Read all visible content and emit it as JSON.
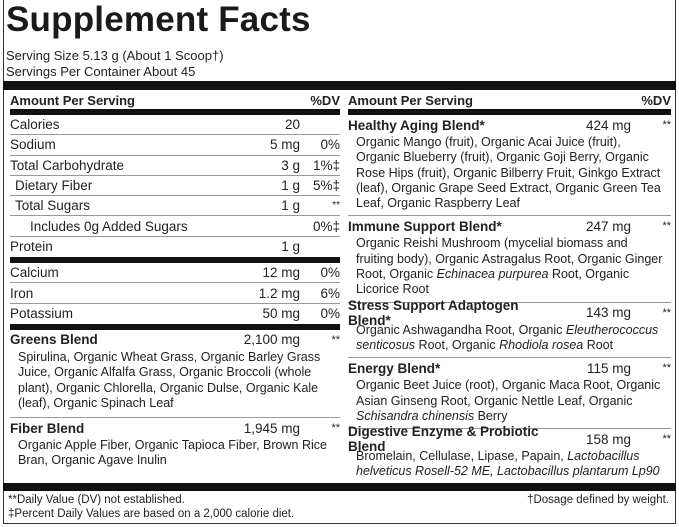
{
  "title": "Supplement Facts",
  "serving_size": "Serving Size 5.13 g (About 1 Scoop†)",
  "servings_per_container": "Servings Per Container About 45",
  "left": {
    "header": {
      "amount": "Amount Per Serving",
      "dv": "%DV"
    },
    "nutrients": [
      {
        "name": "Calories",
        "amount": "20",
        "dv": ""
      },
      {
        "name": "Sodium",
        "amount": "5 mg",
        "dv": "0%"
      },
      {
        "name": "Total Carbohydrate",
        "amount": "3 g",
        "dv": "1%‡"
      },
      {
        "name": "Dietary Fiber",
        "amount": "1 g",
        "dv": "5%‡",
        "indent": 1
      },
      {
        "name": "Total Sugars",
        "amount": "1 g",
        "dv": "**",
        "indent": 1
      },
      {
        "name": "Includes 0g Added Sugars",
        "amount": "",
        "dv": "0%‡",
        "indent": 2
      },
      {
        "name": "Protein",
        "amount": "1 g",
        "dv": ""
      }
    ],
    "minerals": [
      {
        "name": "Calcium",
        "amount": "12 mg",
        "dv": "0%"
      },
      {
        "name": "Iron",
        "amount": "1.2 mg",
        "dv": "6%"
      },
      {
        "name": "Potassium",
        "amount": "50 mg",
        "dv": "0%"
      }
    ],
    "blends": [
      {
        "name": "Greens Blend",
        "amount": "2,100 mg",
        "dv": "**",
        "ingredients": [
          {
            "t": "Spirulina, Organic Wheat Grass, Organic Barley Grass Juice, Organic Alfalfa Grass, Organic Broccoli (whole plant), Organic Chlorella, Organic Dulse, Organic Kale (leaf), Organic Spinach Leaf"
          }
        ]
      },
      {
        "name": "Fiber Blend",
        "amount": "1,945 mg",
        "dv": "**",
        "ingredients": [
          {
            "t": "Organic Apple Fiber, Organic Tapioca Fiber, Brown Rice Bran, Organic Agave Inulin"
          }
        ]
      }
    ]
  },
  "right": {
    "header": {
      "amount": "Amount Per Serving",
      "dv": "%DV"
    },
    "blends": [
      {
        "name": "Healthy Aging Blend*",
        "amount": "424 mg",
        "dv": "**",
        "ingredients": [
          {
            "t": "Organic Mango (fruit), Organic Acai Juice (fruit), Organic Blueberry (fruit), Organic Goji Berry, Organic Rose Hips (fruit), Organic Bilberry Fruit, Ginkgo Extract (leaf), Organic Grape Seed Extract, Organic Green Tea Leaf, Organic Raspberry Leaf"
          }
        ]
      },
      {
        "name": "Immune Support Blend*",
        "amount": "247 mg",
        "dv": "**",
        "ingredients": [
          {
            "t": "Organic Reishi Mushroom (mycelial biomass and fruiting body), Organic Astragalus Root, Organic Ginger Root, Organic "
          },
          {
            "t": "Echinacea purpurea",
            "i": true
          },
          {
            "t": " Root, Organic Licorice Root"
          }
        ]
      },
      {
        "name": "Stress Support Adaptogen Blend*",
        "amount": "143 mg",
        "dv": "**",
        "ingredients": [
          {
            "t": "Organic Ashwagandha Root, Organic "
          },
          {
            "t": "Eleutherococcus senticosus",
            "i": true
          },
          {
            "t": " Root, Organic "
          },
          {
            "t": "Rhodiola rosea",
            "i": true
          },
          {
            "t": " Root"
          }
        ]
      },
      {
        "name": "Energy Blend*",
        "amount": "115 mg",
        "dv": "**",
        "ingredients": [
          {
            "t": "Organic Beet Juice (root), Organic Maca Root, Organic Asian Ginseng Root, Organic Nettle Leaf, Organic "
          },
          {
            "t": "Schisandra chinensis",
            "i": true
          },
          {
            "t": " Berry"
          }
        ]
      },
      {
        "name": "Digestive Enzyme & Probiotic Blend",
        "amount": "158 mg",
        "dv": "**",
        "ingredients": [
          {
            "t": "Bromelain, Cellulase, Lipase, Papain, "
          },
          {
            "t": "Lactobacillus helveticus Rosell-52 ME, Lactobacillus plantarum Lp90",
            "i": true
          }
        ]
      }
    ]
  },
  "footnotes": {
    "dv_not_established": "**Daily Value (DV) not established.",
    "calorie_diet": "‡Percent Daily Values are based on a 2,000 calorie diet.",
    "dosage": "†Dosage defined by weight."
  }
}
